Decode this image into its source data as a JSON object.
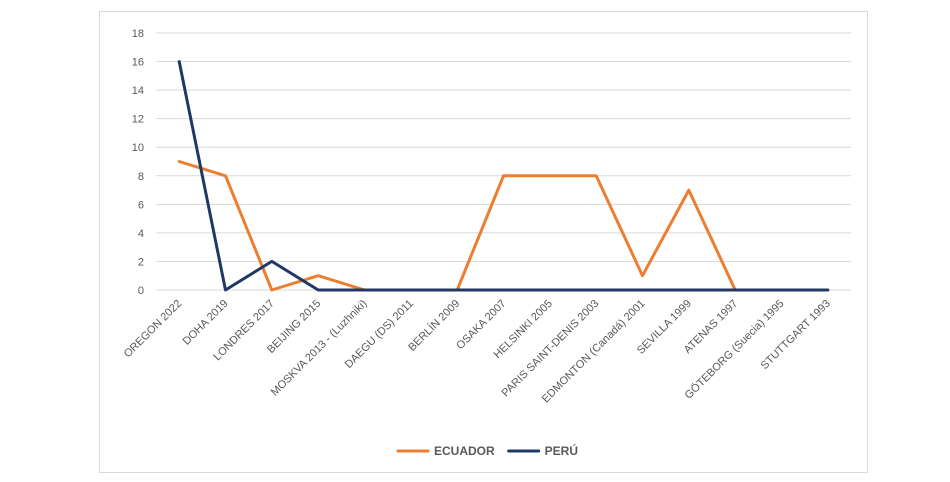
{
  "chart_data": {
    "type": "line",
    "title": "",
    "xlabel": "",
    "ylabel": "",
    "ylim": [
      0,
      18
    ],
    "yticks": [
      0,
      2,
      4,
      6,
      8,
      10,
      12,
      14,
      16,
      18
    ],
    "grid": true,
    "legend_position": "bottom",
    "categories": [
      "OREGON 2022",
      "DOHA 2019",
      "LONDRES 2017",
      "BEIJING 2015",
      "MOSKVA 2013 - (Luzhniki)",
      "DAEGU (DS) 2011",
      "BERLÍN 2009",
      "OSAKA 2007",
      "HELSINKI 2005",
      "PARIS SAINT-DENIS 2003",
      "EDMONTON (Canadá) 2001",
      "SEVILLA 1999",
      "ATENAS 1997",
      "GÖTEBORG (Suecia) 1995",
      "STUTTGART 1993"
    ],
    "series": [
      {
        "name": "ECUADOR",
        "color": "#ED7D31",
        "values": [
          9,
          8,
          0,
          1,
          0,
          0,
          0,
          8,
          8,
          8,
          1,
          7,
          0,
          0,
          0
        ]
      },
      {
        "name": "PERÚ",
        "color": "#1F3864",
        "values": [
          16,
          0,
          2,
          0,
          0,
          0,
          0,
          0,
          0,
          0,
          0,
          0,
          0,
          0,
          0
        ]
      }
    ]
  }
}
